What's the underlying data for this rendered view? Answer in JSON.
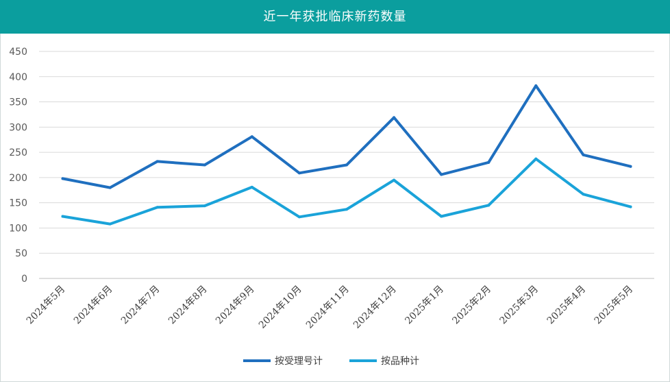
{
  "chart_data": {
    "type": "line",
    "title": "近一年获批临床新药数量",
    "xlabel": "",
    "ylabel": "",
    "ylim": [
      0,
      450
    ],
    "yticks": [
      0,
      50,
      100,
      150,
      200,
      250,
      300,
      350,
      400,
      450
    ],
    "grid": true,
    "legend_position": "bottom",
    "categories": [
      "2024年5月",
      "2024年6月",
      "2024年7月",
      "2024年8月",
      "2024年9月",
      "2024年10月",
      "2024年11月",
      "2024年12月",
      "2025年1月",
      "2025年2月",
      "2025年3月",
      "2025年4月",
      "2025年5月"
    ],
    "series": [
      {
        "name": "按受理号计",
        "color": "#1f6fbf",
        "values": [
          198,
          180,
          232,
          225,
          281,
          209,
          225,
          319,
          206,
          230,
          382,
          245,
          222
        ]
      },
      {
        "name": "按品种计",
        "color": "#1aa3d9",
        "values": [
          123,
          108,
          141,
          144,
          181,
          122,
          137,
          195,
          123,
          145,
          237,
          167,
          142
        ]
      }
    ]
  }
}
